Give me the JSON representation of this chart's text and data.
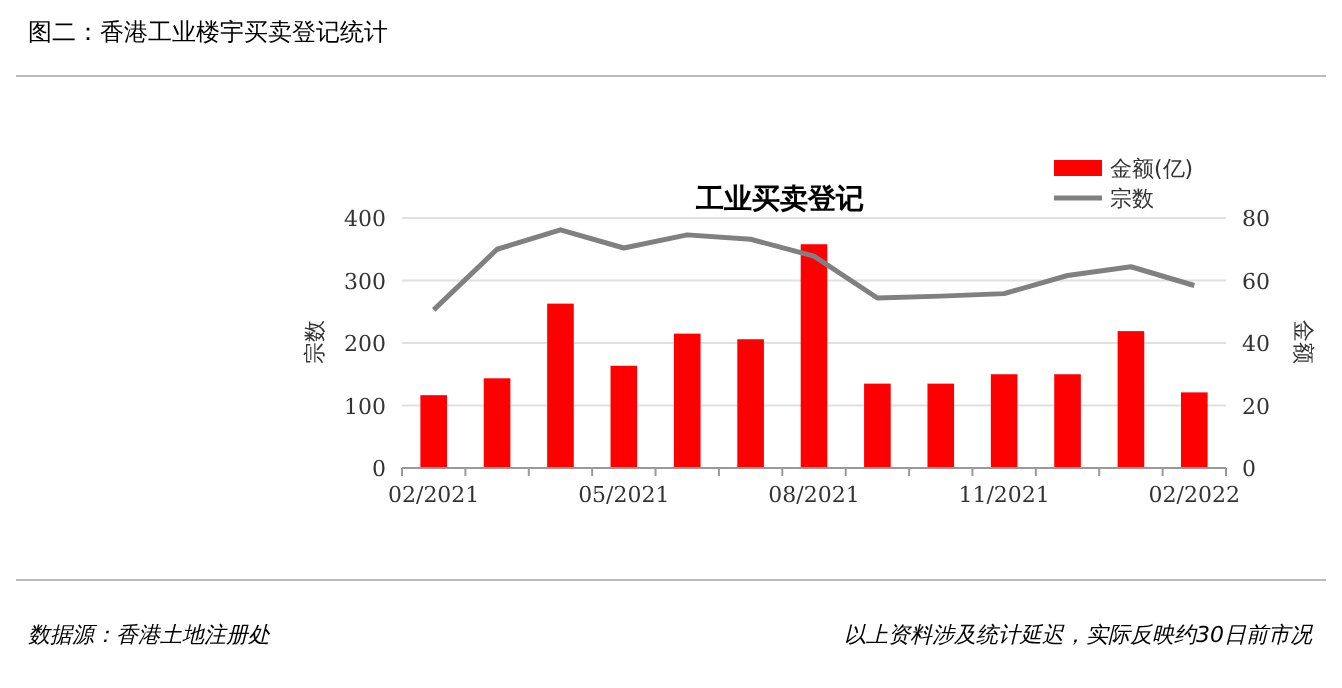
{
  "chart_data": {
    "type": "bar",
    "title": "图二：香港工业楼宇买卖登记统计",
    "subtitle": "工业买卖登记",
    "ylabel": "宗数",
    "y2label": "金额",
    "categories": [
      "02/2021",
      null,
      null,
      "05/2021",
      null,
      null,
      "08/2021",
      null,
      null,
      "11/2021",
      null,
      null,
      "02/2022"
    ],
    "series": [
      {
        "name": "金额(亿)",
        "axis": "y2",
        "color": "#ff0000",
        "values": [
          23.3,
          28.7,
          52.6,
          32.7,
          43,
          41.2,
          71.6,
          27,
          27,
          30,
          30,
          43.8,
          24.2
        ]
      },
      {
        "name": "宗数",
        "type": "line",
        "axis": "y",
        "color": "#808080",
        "values": [
          253,
          350,
          381,
          352,
          373,
          366,
          339,
          272,
          275,
          279,
          308,
          322,
          292
        ]
      }
    ],
    "ylim": [
      0,
      400
    ],
    "yticks": [
      0,
      100,
      200,
      300,
      400
    ],
    "y2lim": [
      0,
      80
    ],
    "y2ticks": [
      0,
      20,
      40,
      60,
      80
    ],
    "grid": "y",
    "legend": "top right",
    "marker": "none",
    "line_style": "solid",
    "annotations": [
      "数据源：香港土地注册处",
      "以上资料涉及统计延迟，实际反映约30日前市况"
    ]
  }
}
